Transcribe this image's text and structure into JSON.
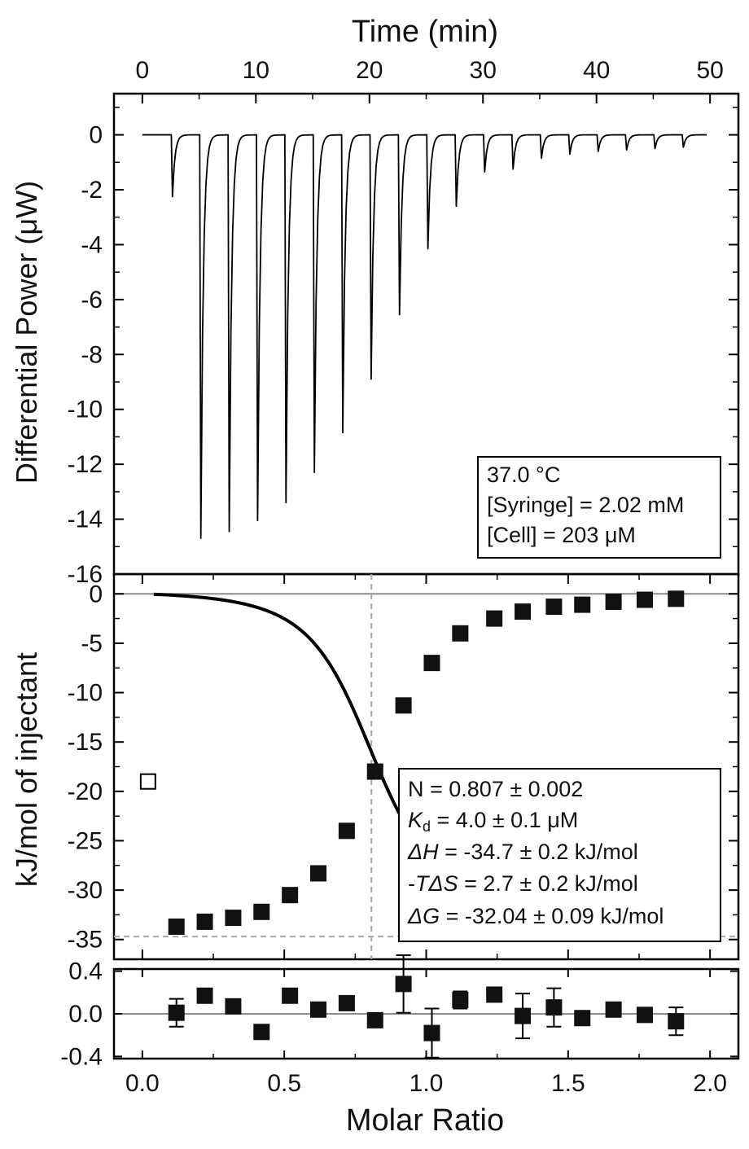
{
  "chart_data": [
    {
      "type": "line",
      "panel": "thermogram",
      "xlabel": "Time (min)",
      "ylabel": "Differential Power (μW)",
      "xlim": [
        -2.5,
        52.5
      ],
      "ylim": [
        -16,
        1.5
      ],
      "x_ticks": [
        "0",
        "10",
        "20",
        "30",
        "40",
        "50"
      ],
      "y_ticks": [
        "0",
        "-2",
        "-4",
        "-6",
        "-8",
        "-10",
        "-12",
        "-14",
        "-16"
      ],
      "injections": [
        {
          "t": 2.6,
          "peak": -2.25
        },
        {
          "t": 5.1,
          "peak": -14.7
        },
        {
          "t": 7.6,
          "peak": -14.45
        },
        {
          "t": 10.1,
          "peak": -14.05
        },
        {
          "t": 12.6,
          "peak": -13.4
        },
        {
          "t": 15.1,
          "peak": -12.3
        },
        {
          "t": 17.6,
          "peak": -10.85
        },
        {
          "t": 20.1,
          "peak": -8.9
        },
        {
          "t": 22.6,
          "peak": -6.55
        },
        {
          "t": 25.1,
          "peak": -4.15
        },
        {
          "t": 27.6,
          "peak": -2.6
        },
        {
          "t": 30.1,
          "peak": -1.35
        },
        {
          "t": 32.6,
          "peak": -1.25
        },
        {
          "t": 35.1,
          "peak": -0.85
        },
        {
          "t": 37.6,
          "peak": -0.7
        },
        {
          "t": 40.1,
          "peak": -0.6
        },
        {
          "t": 42.6,
          "peak": -0.55
        },
        {
          "t": 45.1,
          "peak": -0.5
        },
        {
          "t": 47.6,
          "peak": -0.45
        }
      ],
      "baseline": 0,
      "annotation": [
        "37.0 °C",
        "[Syringe] = 2.02 mM",
        "[Cell] = 203 μM"
      ]
    },
    {
      "type": "scatter",
      "panel": "binding-isotherm",
      "xlabel": "",
      "ylabel": "kJ/mol of injectant",
      "xlim": [
        -0.1,
        2.1
      ],
      "ylim": [
        -37,
        2
      ],
      "y_ticks": [
        "0",
        "-5",
        "-10",
        "-15",
        "-20",
        "-25",
        "-30",
        "-35"
      ],
      "points": [
        {
          "x": 0.12,
          "y": -33.7
        },
        {
          "x": 0.22,
          "y": -33.2
        },
        {
          "x": 0.32,
          "y": -32.8
        },
        {
          "x": 0.42,
          "y": -32.2
        },
        {
          "x": 0.52,
          "y": -30.5
        },
        {
          "x": 0.62,
          "y": -28.3
        },
        {
          "x": 0.72,
          "y": -24.0
        },
        {
          "x": 0.82,
          "y": -18.0
        },
        {
          "x": 0.92,
          "y": -11.3
        },
        {
          "x": 1.02,
          "y": -7.0
        },
        {
          "x": 1.12,
          "y": -4.0
        },
        {
          "x": 1.24,
          "y": -2.5
        },
        {
          "x": 1.34,
          "y": -1.8
        },
        {
          "x": 1.45,
          "y": -1.3
        },
        {
          "x": 1.55,
          "y": -1.1
        },
        {
          "x": 1.66,
          "y": -0.8
        },
        {
          "x": 1.77,
          "y": -0.6
        },
        {
          "x": 1.88,
          "y": -0.5
        }
      ],
      "excluded_point": {
        "x": 0.02,
        "y": -19.0
      },
      "fit": {
        "N": 0.807,
        "Kd_uM": 4.0,
        "dH": -34.7,
        "cell_uM": 203
      },
      "guide_lines": {
        "x": 0.807,
        "y": -34.7
      },
      "annotation": {
        "n": "N = 0.807 ± 0.002",
        "kd_sym": "K",
        "kd_sub": "d",
        "kd_rest": " = 4.0 ± 0.1 μM",
        "dh_sym": "ΔH",
        "dh_rest": " = -34.7 ± 0.2 kJ/mol",
        "tds_pre": "-",
        "tds_sym": "TΔS",
        "tds_rest": " = 2.7 ± 0.2 kJ/mol",
        "dg_sym": "ΔG",
        "dg_rest": " = -32.04 ± 0.09 kJ/mol"
      }
    },
    {
      "type": "scatter",
      "panel": "residuals",
      "xlabel": "Molar Ratio",
      "ylabel": "",
      "xlim": [
        -0.1,
        2.1
      ],
      "ylim": [
        -0.42,
        0.42
      ],
      "x_ticks": [
        "0.0",
        "0.5",
        "1.0",
        "1.5",
        "2.0"
      ],
      "y_ticks": [
        "0.4",
        "0.0",
        "-0.4"
      ],
      "points": [
        {
          "x": 0.12,
          "y": 0.01,
          "err": 0.13
        },
        {
          "x": 0.22,
          "y": 0.17,
          "err": 0
        },
        {
          "x": 0.32,
          "y": 0.07,
          "err": 0
        },
        {
          "x": 0.42,
          "y": -0.17,
          "err": 0
        },
        {
          "x": 0.52,
          "y": 0.17,
          "err": 0
        },
        {
          "x": 0.62,
          "y": 0.04,
          "err": 0
        },
        {
          "x": 0.72,
          "y": 0.1,
          "err": 0
        },
        {
          "x": 0.82,
          "y": -0.06,
          "err": 0
        },
        {
          "x": 0.92,
          "y": 0.28,
          "err": 0.27
        },
        {
          "x": 1.02,
          "y": -0.18,
          "err": 0.23
        },
        {
          "x": 1.12,
          "y": 0.13,
          "err": 0.08
        },
        {
          "x": 1.24,
          "y": 0.18,
          "err": 0
        },
        {
          "x": 1.34,
          "y": -0.02,
          "err": 0.21
        },
        {
          "x": 1.45,
          "y": 0.06,
          "err": 0.18
        },
        {
          "x": 1.55,
          "y": -0.04,
          "err": 0
        },
        {
          "x": 1.66,
          "y": 0.04,
          "err": 0
        },
        {
          "x": 1.77,
          "y": -0.01,
          "err": 0
        },
        {
          "x": 1.88,
          "y": -0.07,
          "err": 0.13
        }
      ]
    }
  ],
  "colors": {
    "trace": "#000000",
    "zero_line": "#8c8c8c",
    "guide": "#a8a8a8",
    "marker": "#111111"
  }
}
